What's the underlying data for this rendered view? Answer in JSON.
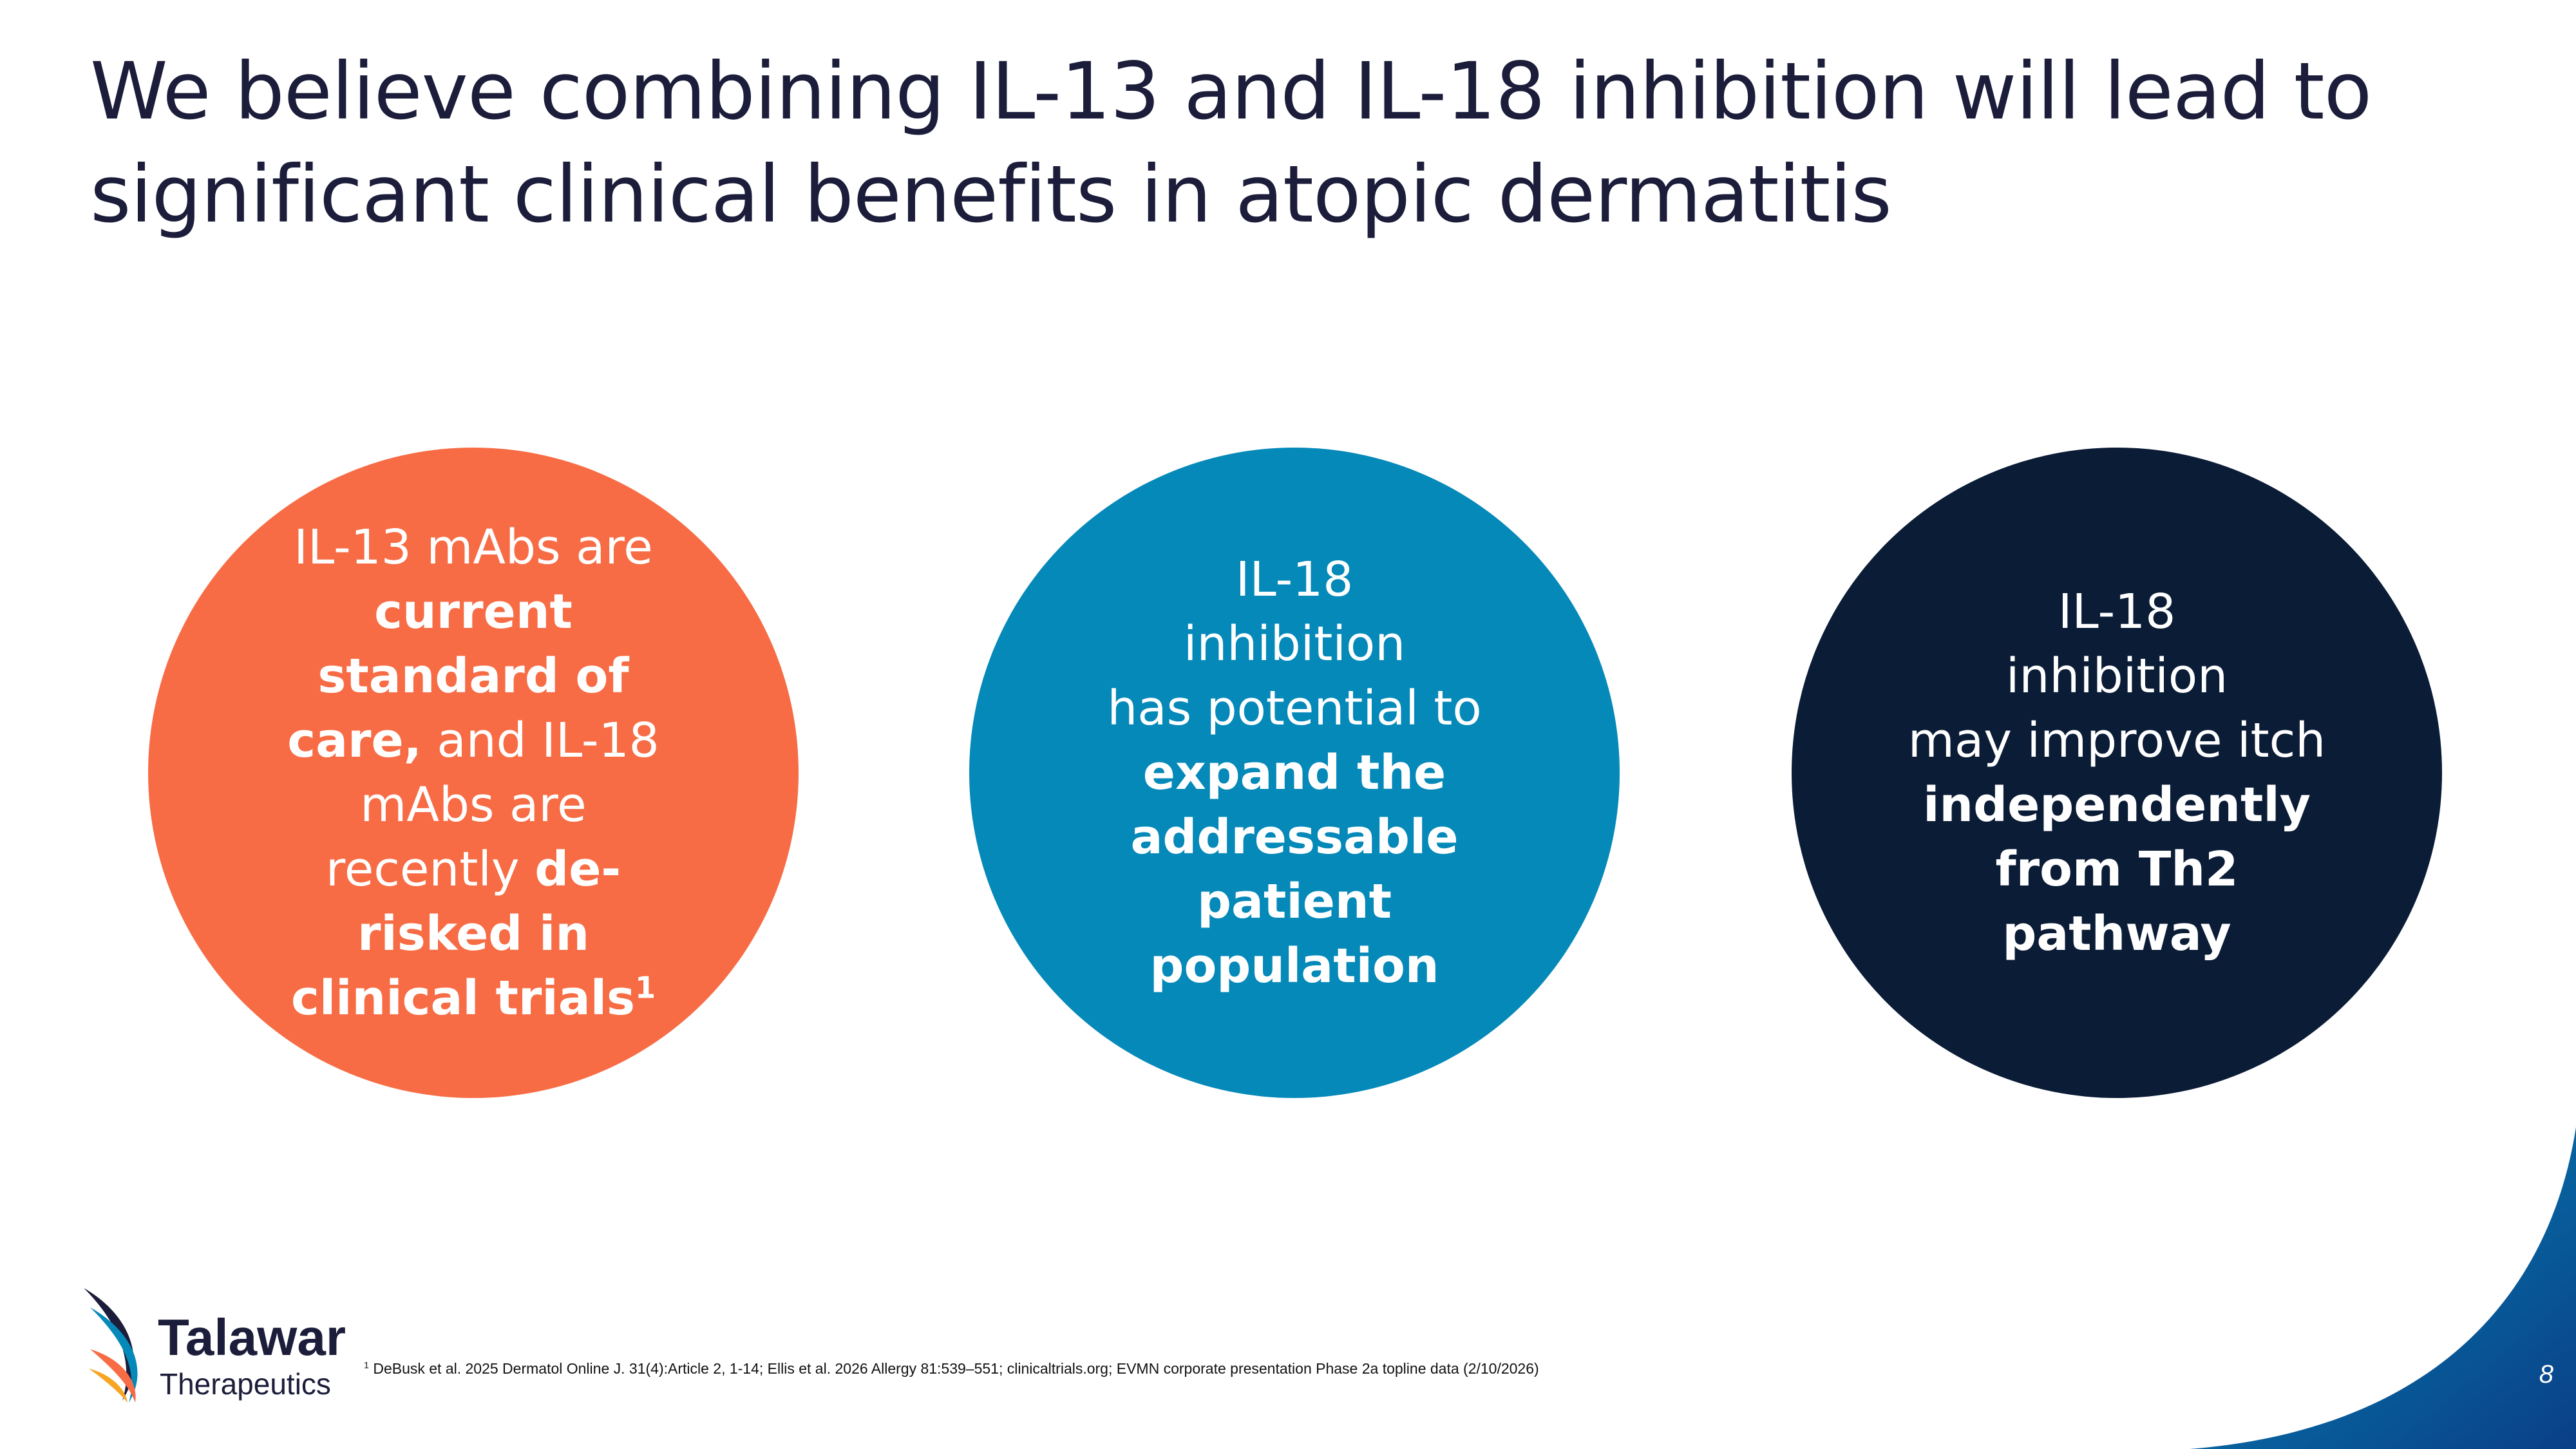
{
  "slide": {
    "title_line1": "We believe combining IL-13 and IL-18 inhibition will lead to",
    "title_line2": "significant clinical benefits in atopic dermatitis",
    "page_number": "8"
  },
  "circles": [
    {
      "color": "#f76c45",
      "parts": {
        "a": "IL-13 mAbs are",
        "b_bold": "current standard of care,",
        "c": "and IL-18 mAbs are recently",
        "d_bold": "de-risked in clinical trials",
        "sup": "1"
      }
    },
    {
      "color": "#0589b9",
      "parts": {
        "a": "IL-18",
        "b": "inhibition",
        "c": "has potential to",
        "d_bold": "expand the addressable patient population"
      }
    },
    {
      "color": "#0b1c37",
      "parts": {
        "a": "IL-18",
        "b": "inhibition",
        "c": "may improve itch",
        "d_bold": "independently from Th2 pathway"
      }
    }
  ],
  "footnote": {
    "sup": "1",
    "text": "DeBusk et al. 2025 Dermatol Online J. 31(4):Article 2, 1-14; Ellis et al. 2026 Allergy 81:539–551; clinicaltrials.org; EVMN corporate presentation Phase 2a topline data (2/10/2026)"
  },
  "logo": {
    "name": "Talawar",
    "subtitle": "Therapeutics",
    "colors": [
      "#1b1d3a",
      "#0589b9",
      "#f76c45",
      "#f5a623"
    ]
  },
  "accent": {
    "swoosh_color": "#0a57a3"
  }
}
